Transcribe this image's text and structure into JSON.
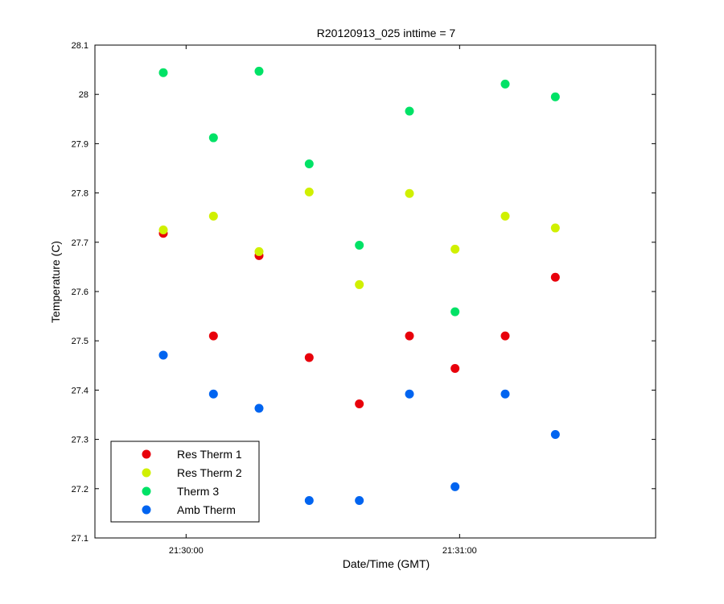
{
  "chart_data": {
    "type": "scatter",
    "title": "R20120913_025 inttime = 7",
    "xlabel": "Date/Time (GMT)",
    "ylabel": "Temperature (C)",
    "xlim": [
      "21:29:40",
      "21:31:43"
    ],
    "ylim": [
      27.1,
      28.1
    ],
    "yticks": [
      27.1,
      27.2,
      27.3,
      27.4,
      27.5,
      27.6,
      27.7,
      27.8,
      27.9,
      28,
      28.1
    ],
    "yticklabels": [
      "27.1",
      "27.2",
      "27.3",
      "27.4",
      "27.5",
      "27.6",
      "27.7",
      "27.8",
      "27.9",
      "28",
      "28.1"
    ],
    "xticks": [
      "21:30:00",
      "21:31:00"
    ],
    "xticklabels": [
      "21:30:00",
      "21:31:00"
    ],
    "x": [
      "21:29:55",
      "21:30:06",
      "21:30:16",
      "21:30:27",
      "21:30:38",
      "21:30:49",
      "21:30:59",
      "21:31:10",
      "21:31:21"
    ],
    "grid": false,
    "legend_position": "bottom-left",
    "series": [
      {
        "name": "Res Therm 1",
        "color": "#e8000b",
        "values": [
          27.718,
          27.51,
          27.673,
          27.466,
          27.372,
          27.51,
          27.444,
          27.51,
          27.629
        ]
      },
      {
        "name": "Res Therm 2",
        "color": "#d0f000",
        "values": [
          27.725,
          27.753,
          27.681,
          27.802,
          27.614,
          27.799,
          27.686,
          27.753,
          27.729
        ]
      },
      {
        "name": "Therm 3",
        "color": "#00e266",
        "values": [
          28.044,
          27.912,
          28.047,
          27.859,
          27.694,
          27.966,
          27.559,
          28.021,
          27.995
        ]
      },
      {
        "name": "Amb Therm",
        "color": "#0064f0",
        "values": [
          27.471,
          27.392,
          27.363,
          27.176,
          27.176,
          27.392,
          27.204,
          27.392,
          27.31
        ]
      }
    ]
  }
}
